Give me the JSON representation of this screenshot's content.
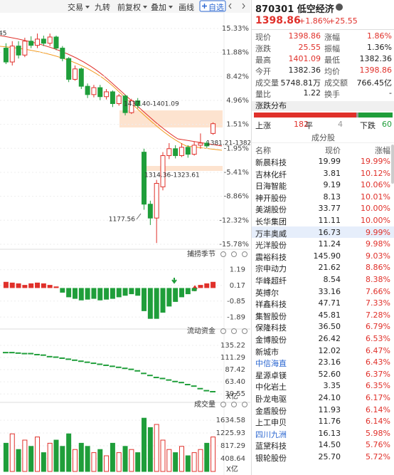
{
  "toolbar": [
    "交易",
    "九转",
    "前复权",
    "叠加",
    "画线",
    "自选"
  ],
  "main_chart": {
    "ylim": [
      -15.78,
      15.33
    ],
    "ticks": [
      {
        "value": 15.33,
        "label": "15.33%"
      },
      {
        "value": 11.88,
        "label": "11.88%"
      },
      {
        "value": 8.42,
        "label": "8.42%"
      },
      {
        "value": 4.96,
        "label": "4.96%"
      },
      {
        "value": 1.51,
        "label": "1.51%"
      },
      {
        "value": -1.95,
        "label": "-1.95%"
      },
      {
        "value": -5.41,
        "label": "-5.41%"
      },
      {
        "value": -8.86,
        "label": "-8.86%"
      },
      {
        "value": -12.32,
        "label": "-12.32%"
      },
      {
        "value": -15.78,
        "label": "-15.78%"
      }
    ],
    "annotations": [
      "45",
      "1437.40-1401.09",
      "1381.21-1382.36",
      "1314.36-1323.61",
      "1177.56"
    ],
    "candles": [
      [
        12.5,
        10.5,
        13.2,
        10.2
      ],
      [
        10.5,
        12.8,
        13.5,
        10
      ],
      [
        12.8,
        11.5,
        13.5,
        11
      ],
      [
        11.5,
        13.5,
        14,
        11.2
      ],
      [
        13.5,
        12.9,
        14.2,
        12.5
      ],
      [
        12.9,
        13.8,
        14.6,
        12.5
      ],
      [
        13.8,
        13.2,
        14.3,
        12.8
      ],
      [
        13.2,
        14.1,
        14.6,
        12.8
      ],
      [
        14.1,
        12.5,
        14.3,
        12.2
      ],
      [
        12.5,
        11,
        12.8,
        10.6
      ],
      [
        11,
        8,
        11.2,
        7.6
      ],
      [
        8,
        9.5,
        10,
        7.8
      ],
      [
        9.5,
        7,
        9.7,
        6.6
      ],
      [
        7,
        5.8,
        7.4,
        5.3
      ],
      [
        5.8,
        6.8,
        7.2,
        5.4
      ],
      [
        6.8,
        5.5,
        7.2,
        5
      ],
      [
        5.5,
        6.2,
        6.6,
        5.1
      ],
      [
        6.2,
        4.5,
        6.4,
        4
      ],
      [
        4.5,
        5.6,
        5.9,
        4.2
      ],
      [
        5.6,
        3.2,
        5.8,
        2.8
      ],
      [
        3.2,
        4.9,
        5.2,
        3
      ],
      [
        4.9,
        4.2,
        5.3,
        3.8
      ],
      [
        -2.5,
        -10,
        -2,
        -10.8
      ],
      [
        -10,
        -12,
        -9.5,
        -13
      ],
      [
        -12,
        -7,
        -6.5,
        -15.6
      ],
      [
        -7.5,
        -3,
        -2.5,
        -8
      ],
      [
        -3,
        -2,
        -1.2,
        -3.5
      ],
      [
        -2,
        -3,
        -1.5,
        -3.4
      ],
      [
        -3,
        -1.8,
        -1.2,
        -3.2
      ],
      [
        -1.8,
        -2.8,
        -1.5,
        -3.3
      ],
      [
        -2.8,
        -1.5,
        -1,
        -3
      ],
      [
        -1.5,
        -1.2,
        0.2,
        -2
      ],
      [
        -1.2,
        -1.6,
        -0.9,
        -1.9
      ],
      [
        0.2,
        1.6,
        1.8,
        0
      ]
    ]
  },
  "indicator": {
    "title": "捕捞季节",
    "ylim": [
      -2.2,
      1.5
    ],
    "ticks": [
      1.19,
      0.17,
      -0.85,
      -1.89
    ],
    "values": [
      0.4,
      0.35,
      0.3,
      0.2,
      0.3,
      0.35,
      0.3,
      0.2,
      0.1,
      -0.3,
      -0.6,
      -0.7,
      -0.8,
      -0.75,
      -0.7,
      -0.8,
      -0.75,
      -0.7,
      -0.6,
      -0.5,
      -0.4,
      -0.5,
      -1.5,
      -2.0,
      -2.0,
      -1.6,
      -1.2,
      -0.9,
      -0.6,
      -0.4,
      -0.2,
      0.2,
      0.3,
      0.4
    ]
  },
  "fund_flow": {
    "title": "流动资金",
    "unit": "X亿",
    "ylim": [
      30,
      145
    ],
    "ticks": [
      135.22,
      111.29,
      87.42,
      {
        "value": 63.4,
        "label": "63.40"
      },
      39.55
    ],
    "values": [
      121,
      121,
      120,
      119,
      119,
      117,
      116,
      113,
      112,
      110,
      108,
      106,
      104,
      102,
      100,
      98,
      96,
      94,
      92,
      90,
      88,
      85,
      80,
      76,
      72,
      70,
      67,
      64,
      62,
      58,
      55,
      50,
      46,
      44
    ]
  },
  "volume": {
    "title": "成交量",
    "unit": "X亿",
    "ylim": [
      0,
      1750
    ],
    "ticks": [
      1634.58,
      1225.93,
      817.29,
      408.64
    ],
    "values": [
      900,
      1200,
      700,
      1000,
      800,
      1100,
      600,
      900,
      1000,
      800,
      1200,
      700,
      900,
      800,
      600,
      700,
      500,
      900,
      600,
      800,
      700,
      600,
      1700,
      1400,
      1500,
      1000,
      700,
      600,
      800,
      500,
      600,
      700,
      900,
      1100
    ]
  },
  "quote": {
    "title": "870301 低空经济",
    "price": "1398.86",
    "change_pct": "+1.86%",
    "change": "+25.55",
    "stats": [
      [
        "现价",
        "1398.86",
        "涨幅",
        "1.86%"
      ],
      [
        "涨跌",
        "25.55",
        "振幅",
        "1.36%"
      ],
      [
        "最高",
        "1401.09",
        "最低",
        "1382.36"
      ],
      [
        "今开",
        "1382.36",
        "均价",
        "1398.86"
      ],
      [
        "成交量",
        "5748.81万",
        "成交额",
        "766.45亿"
      ],
      [
        "量比",
        "1.22",
        "换手",
        "-"
      ]
    ]
  },
  "distribution": {
    "title": "涨跌分布",
    "labels": [
      "上涨",
      "平",
      "下跌"
    ],
    "counts": [
      182,
      4,
      60
    ]
  },
  "constituents": {
    "title": "成分股",
    "columns": [
      "名称",
      "现价",
      "涨幅"
    ],
    "selected_row": 6,
    "linked_rows": [
      17,
      23
    ],
    "rows": [
      [
        "新晨科技",
        "19.99",
        "19.99%"
      ],
      [
        "吉林化纤",
        "3.81",
        "10.12%"
      ],
      [
        "日海智能",
        "9.19",
        "10.06%"
      ],
      [
        "神开股份",
        "8.13",
        "10.01%"
      ],
      [
        "美湖股份",
        "33.77",
        "10.00%"
      ],
      [
        "长华集团",
        "11.11",
        "10.00%"
      ],
      [
        "万丰奥威",
        "16.73",
        "9.99%"
      ],
      [
        "光洋股份",
        "11.24",
        "9.98%"
      ],
      [
        "震裕科技",
        "145.90",
        "9.03%"
      ],
      [
        "宗申动力",
        "21.62",
        "8.86%"
      ],
      [
        "华峰超纤",
        "8.54",
        "8.38%"
      ],
      [
        "英搏尔",
        "33.16",
        "7.66%"
      ],
      [
        "祥鑫科技",
        "47.71",
        "7.33%"
      ],
      [
        "集智股份",
        "45.81",
        "7.28%"
      ],
      [
        "保隆科技",
        "36.50",
        "6.79%"
      ],
      [
        "金博股份",
        "26.42",
        "6.53%"
      ],
      [
        "新城市",
        "12.02",
        "6.47%"
      ],
      [
        "中信海直",
        "23.16",
        "6.43%"
      ],
      [
        "星源卓镁",
        "52.60",
        "6.37%"
      ],
      [
        "中化岩土",
        "3.35",
        "6.35%"
      ],
      [
        "卧龙电驱",
        "24.10",
        "6.17%"
      ],
      [
        "金盾股份",
        "11.93",
        "6.14%"
      ],
      [
        "上工申贝",
        "11.76",
        "6.14%"
      ],
      [
        "四川九洲",
        "16.13",
        "5.98%"
      ],
      [
        "蓝黛科技",
        "14.50",
        "5.76%"
      ],
      [
        "银轮股份",
        "25.70",
        "5.72%"
      ]
    ]
  }
}
